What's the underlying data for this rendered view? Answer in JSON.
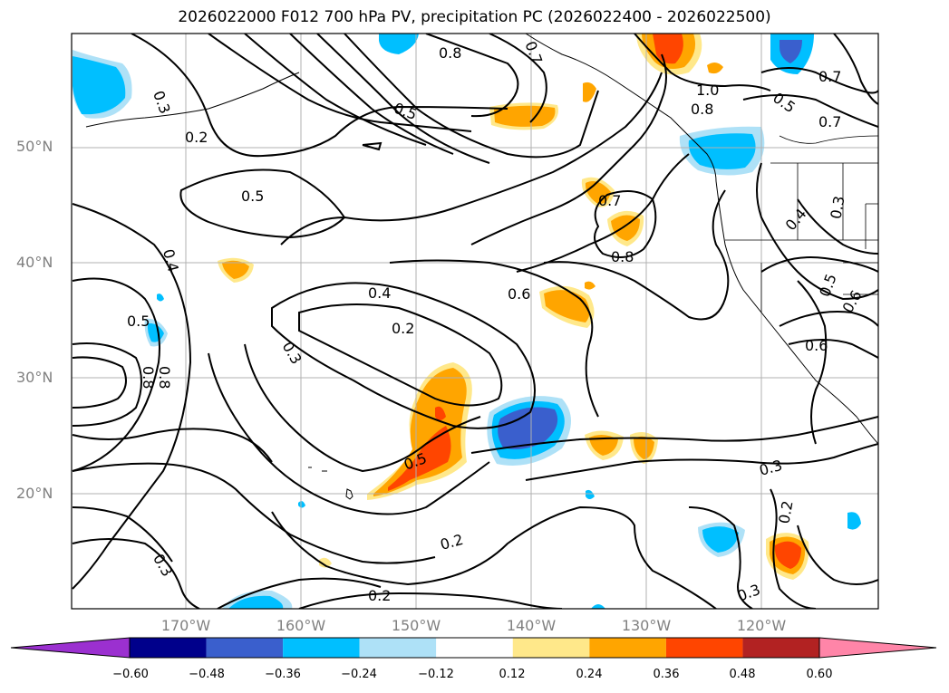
{
  "title": "2026022000 F012 700 hPa PV, precipitation PC (2026022400 - 2026022500)",
  "lat_labels": [
    "50°N",
    "40°N",
    "30°N",
    "20°N"
  ],
  "lon_labels": [
    "170°W",
    "160°W",
    "150°W",
    "140°W",
    "130°W",
    "120°W"
  ],
  "colorbar": {
    "colors": [
      "#9b30d0",
      "#00008b",
      "#3a5fcd",
      "#00bfff",
      "#aee1f7",
      "#ffffff",
      "#ffe88a",
      "#ffa500",
      "#ff4500",
      "#b22222",
      "#ff85a8"
    ],
    "tick_labels": [
      "−0.60",
      "−0.48",
      "−0.36",
      "−0.24",
      "−0.12",
      "0.12",
      "0.24",
      "0.36",
      "0.48",
      "0.60"
    ]
  },
  "contour_labels": [
    "0.8",
    "0.7",
    "1.0",
    "0.8",
    "0.7",
    "0.7",
    "0.3",
    "0.2",
    "0.5",
    "0.5",
    "0.7",
    "0.8",
    "0.6",
    "0.4",
    "0.2",
    "0.3",
    "0.4",
    "0.5",
    "0.8",
    "0.8",
    "0.5",
    "0.2",
    "0.3",
    "0.2",
    "0.3",
    "0.2",
    "0.3",
    "0.4",
    "0.3",
    "0.5",
    "0.6",
    "0.6",
    "0.5"
  ],
  "colors": {
    "grid": "#b0b0b0",
    "contour": "#000000",
    "coast": "#000000"
  }
}
